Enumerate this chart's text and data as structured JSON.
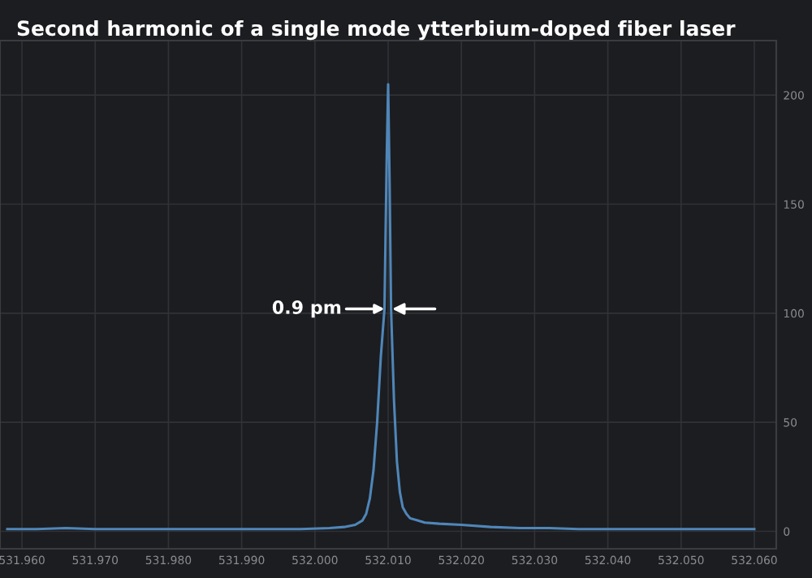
{
  "chart_data": {
    "type": "line",
    "title": "Second harmonic of a single mode ytterbium-doped fiber laser",
    "x": [
      531.958,
      531.962,
      531.966,
      531.97,
      531.974,
      531.978,
      531.982,
      531.986,
      531.99,
      531.994,
      531.998,
      532.002,
      532.004,
      532.0055,
      532.0065,
      532.007,
      532.0075,
      532.008,
      532.0085,
      532.009,
      532.0095,
      532.0098,
      532.01,
      532.0102,
      532.0104,
      532.0108,
      532.0112,
      532.0116,
      532.012,
      532.0125,
      532.013,
      532.014,
      532.015,
      532.017,
      532.02,
      532.024,
      532.028,
      532.032,
      532.036,
      532.04,
      532.044,
      532.048,
      532.052,
      532.056,
      532.06
    ],
    "series": [
      {
        "color": "#4f86b8",
        "values": [
          1,
          1,
          1.5,
          1,
          1,
          1,
          1,
          1,
          1,
          1,
          1,
          1.5,
          2,
          3,
          5,
          8,
          15,
          28,
          50,
          80,
          102,
          170,
          205,
          160,
          102,
          60,
          32,
          18,
          11,
          8,
          6,
          5,
          4,
          3.5,
          3,
          2,
          1.5,
          1.5,
          1,
          1,
          1,
          1,
          1,
          1,
          1
        ]
      }
    ],
    "xlim": [
      531.957,
      532.063
    ],
    "ylim": [
      -8,
      225
    ],
    "xticks": [
      {
        "value": 531.96,
        "label": "531.960"
      },
      {
        "value": 531.97,
        "label": "531.970"
      },
      {
        "value": 531.98,
        "label": "531.980"
      },
      {
        "value": 531.99,
        "label": "531.990"
      },
      {
        "value": 532.0,
        "label": "532.000"
      },
      {
        "value": 532.01,
        "label": "532.010"
      },
      {
        "value": 532.02,
        "label": "532.020"
      },
      {
        "value": 532.03,
        "label": "532.030"
      },
      {
        "value": 532.04,
        "label": "532.040"
      },
      {
        "value": 532.05,
        "label": "532.050"
      },
      {
        "value": 532.06,
        "label": "532.060"
      }
    ],
    "yticks": [
      0,
      50,
      100,
      150,
      200
    ],
    "grid": true,
    "annotations": [
      {
        "text": "0.9 pm",
        "x": 532.0095,
        "y": 102
      }
    ]
  }
}
